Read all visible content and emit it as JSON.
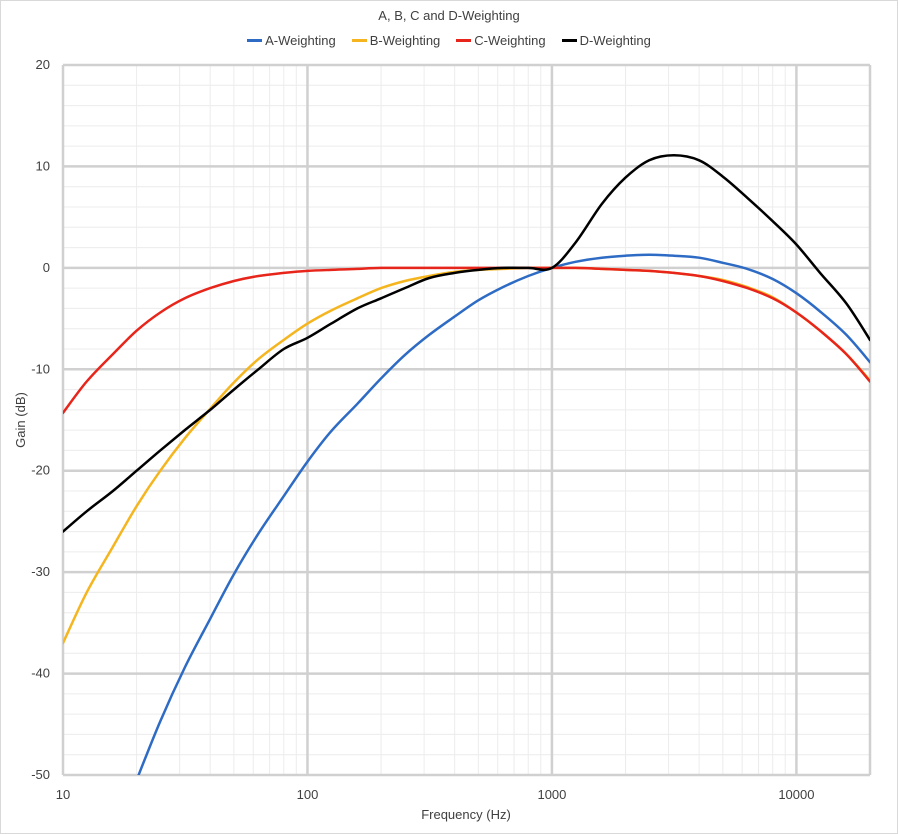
{
  "chart_data": {
    "type": "line",
    "title": "A, B, C and D-Weighting",
    "xlabel": "Frequency (Hz)",
    "ylabel": "Gain (dB)",
    "x_scale": "log",
    "xlim": [
      10,
      20000
    ],
    "ylim": [
      -50,
      20
    ],
    "x_ticks": [
      10,
      100,
      1000,
      10000
    ],
    "x_tick_labels": [
      "10",
      "100",
      "1000",
      "10000"
    ],
    "y_ticks": [
      20,
      10,
      0,
      -10,
      -20,
      -30,
      -40,
      -50
    ],
    "y_tick_labels": [
      "20",
      "10",
      "0",
      "-10",
      "-20",
      "-30",
      "-40",
      "-50"
    ],
    "grid": "major and minor",
    "legend_position": "top",
    "series": [
      {
        "name": "A-Weighting",
        "color": "#2e6bc4",
        "x": [
          20,
          25,
          31.5,
          40,
          50,
          63,
          80,
          100,
          125,
          160,
          200,
          250,
          315,
          400,
          500,
          630,
          800,
          1000,
          1250,
          1600,
          2000,
          2500,
          3150,
          4000,
          5000,
          6300,
          8000,
          10000,
          12500,
          16000,
          20000
        ],
        "y": [
          -50.5,
          -44.7,
          -39.4,
          -34.6,
          -30.2,
          -26.2,
          -22.5,
          -19.1,
          -16.1,
          -13.4,
          -10.9,
          -8.6,
          -6.6,
          -4.8,
          -3.2,
          -1.9,
          -0.8,
          0,
          0.6,
          1.0,
          1.2,
          1.3,
          1.2,
          1.0,
          0.5,
          -0.1,
          -1.1,
          -2.5,
          -4.3,
          -6.6,
          -9.3
        ]
      },
      {
        "name": "B-Weighting",
        "color": "#f5b51e",
        "x": [
          10,
          12.5,
          16,
          20,
          25,
          31.5,
          40,
          50,
          63,
          80,
          100,
          125,
          160,
          200,
          250,
          315,
          400,
          500,
          630,
          800,
          1000,
          1250,
          1600,
          2000,
          2500,
          3150,
          4000,
          5000,
          6300,
          8000,
          10000,
          12500,
          16000,
          20000
        ],
        "y": [
          -37.0,
          -32.0,
          -27.5,
          -23.5,
          -20.0,
          -16.8,
          -13.9,
          -11.3,
          -9.0,
          -7.1,
          -5.5,
          -4.2,
          -3.0,
          -2.0,
          -1.3,
          -0.8,
          -0.4,
          -0.2,
          -0.1,
          0.0,
          0.0,
          0.0,
          -0.1,
          -0.2,
          -0.3,
          -0.5,
          -0.8,
          -1.2,
          -1.9,
          -2.9,
          -4.4,
          -6.2,
          -8.5,
          -11.1
        ]
      },
      {
        "name": "C-Weighting",
        "color": "#e8251b",
        "x": [
          10,
          12.5,
          16,
          20,
          25,
          31.5,
          40,
          50,
          63,
          80,
          100,
          125,
          160,
          200,
          250,
          315,
          400,
          500,
          630,
          800,
          1000,
          1250,
          1600,
          2000,
          2500,
          3150,
          4000,
          5000,
          6300,
          8000,
          10000,
          12500,
          16000,
          20000
        ],
        "y": [
          -14.3,
          -11.2,
          -8.5,
          -6.2,
          -4.4,
          -3.0,
          -2.0,
          -1.3,
          -0.8,
          -0.5,
          -0.3,
          -0.2,
          -0.1,
          0.0,
          0.0,
          0.0,
          0.0,
          0.0,
          0.0,
          0.0,
          0.0,
          0.0,
          -0.1,
          -0.2,
          -0.3,
          -0.5,
          -0.8,
          -1.3,
          -2.0,
          -3.0,
          -4.4,
          -6.2,
          -8.5,
          -11.2
        ]
      },
      {
        "name": "D-Weighting",
        "color": "#000000",
        "x": [
          10,
          12.5,
          16,
          20,
          25,
          31.5,
          40,
          50,
          63,
          80,
          100,
          125,
          160,
          200,
          250,
          315,
          400,
          500,
          630,
          800,
          1000,
          1250,
          1600,
          2000,
          2500,
          3150,
          4000,
          5000,
          6300,
          8000,
          10000,
          12500,
          16000,
          20000
        ],
        "y": [
          -26.0,
          -24.0,
          -22.0,
          -20.0,
          -18.0,
          -16.0,
          -14.0,
          -12.0,
          -10.0,
          -8.0,
          -6.9,
          -5.5,
          -4.0,
          -3.0,
          -2.0,
          -1.0,
          -0.5,
          -0.2,
          0.0,
          0.0,
          0.0,
          2.5,
          6.3,
          8.9,
          10.6,
          11.1,
          10.6,
          9.0,
          6.9,
          4.6,
          2.3,
          -0.5,
          -3.5,
          -7.1
        ]
      }
    ]
  }
}
